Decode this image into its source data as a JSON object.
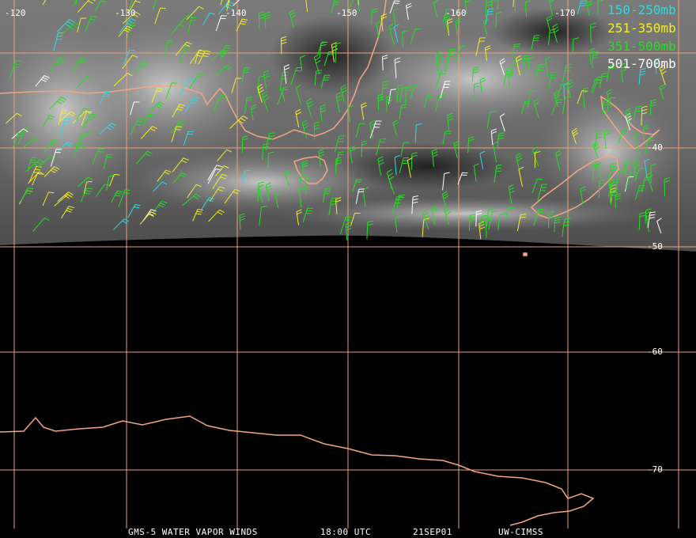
{
  "colors": {
    "grid": "#e8a07a",
    "coast": "#f4a582",
    "band_150_250": "#22e0e8",
    "band_251_350": "#f0f020",
    "band_351_500": "#20e020",
    "band_501_700": "#ffffff"
  },
  "longitude_labels": [
    "-120",
    "-130",
    "-140",
    "-150",
    "-160",
    "-170"
  ],
  "latitude_labels": [
    "-40",
    "-50",
    "-60",
    "-70"
  ],
  "legend": [
    {
      "label": "150-250mb",
      "color": "#22e0e8"
    },
    {
      "label": "251-350mb",
      "color": "#f0f020"
    },
    {
      "label": "351-500mb",
      "color": "#20e020"
    },
    {
      "label": "501-700mb",
      "color": "#ffffff"
    }
  ],
  "footer": {
    "product": "GMS-5 WATER VAPOR WINDS",
    "time": "18:00 UTC",
    "date": "21SEP01",
    "source": "UW-CIMSS"
  }
}
